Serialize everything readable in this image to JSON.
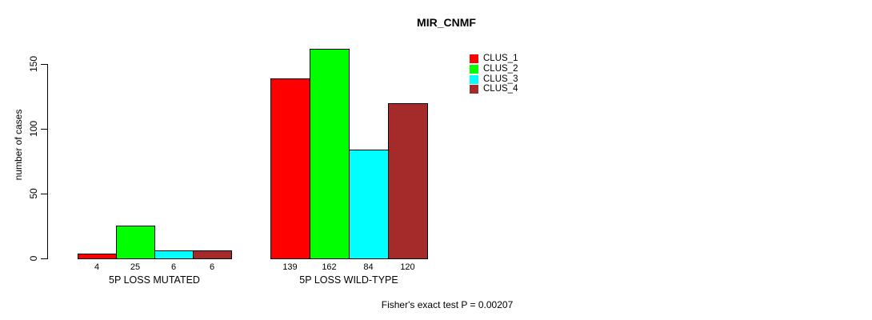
{
  "chart_data": {
    "type": "bar",
    "title": "MIR_CNMF",
    "ylabel": "number of cases",
    "xlabel": "",
    "categories": [
      "5P LOSS MUTATED",
      "5P LOSS WILD-TYPE"
    ],
    "series": [
      {
        "name": "CLUS_1",
        "color": "#FF0000",
        "values": [
          4,
          139
        ]
      },
      {
        "name": "CLUS_2",
        "color": "#00FF00",
        "values": [
          25,
          162
        ]
      },
      {
        "name": "CLUS_3",
        "color": "#00FFFF",
        "values": [
          6,
          84
        ]
      },
      {
        "name": "CLUS_4",
        "color": "#A52A2A",
        "values": [
          6,
          120
        ]
      }
    ],
    "bar_value_labels": [
      [
        "4",
        "25",
        "6",
        "6"
      ],
      [
        "139",
        "162",
        "84",
        "120"
      ]
    ],
    "yticks": [
      0,
      50,
      100,
      150
    ],
    "ylim": [
      0,
      162
    ],
    "grid": false,
    "legend_position": "top-right"
  },
  "footnote": "Fisher's exact test P = 0.00207"
}
